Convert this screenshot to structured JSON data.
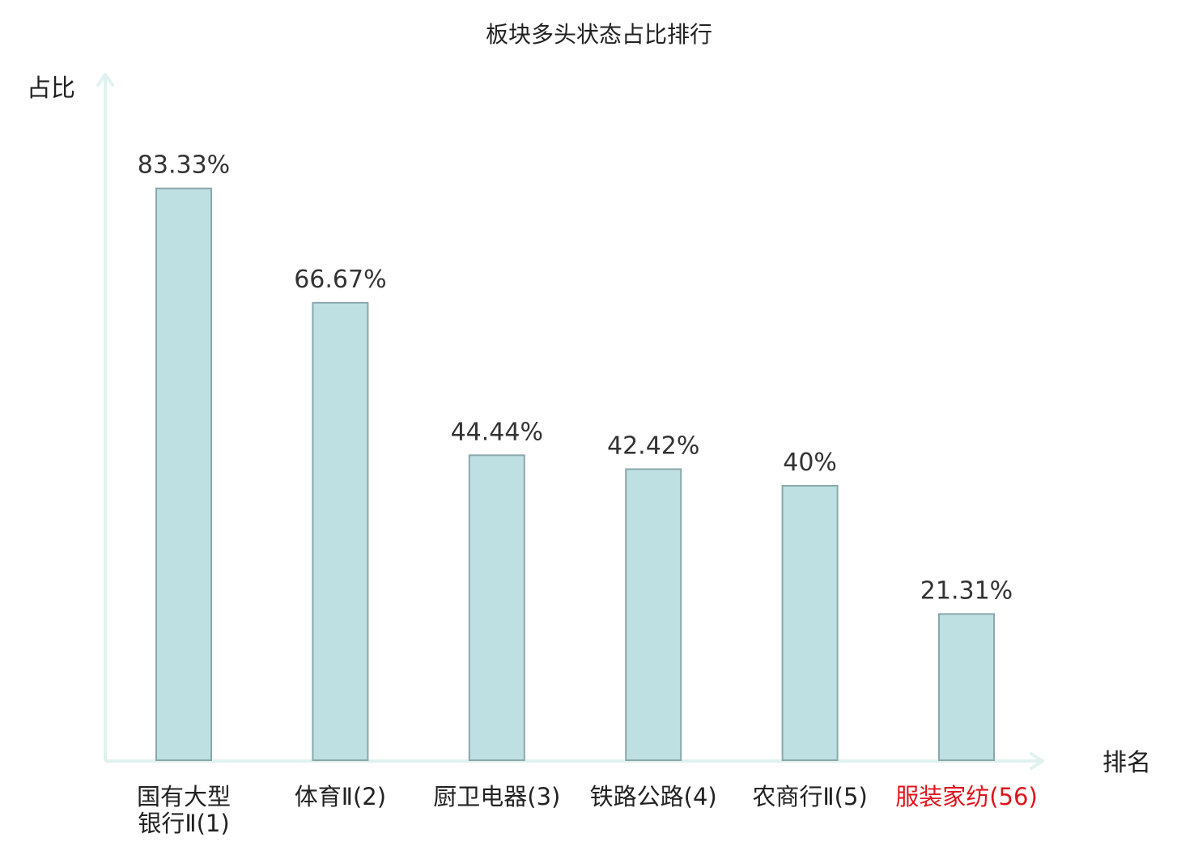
{
  "chart_data": {
    "type": "bar",
    "title": "板块多头状态占比排行",
    "xlabel": "排名",
    "ylabel": "占比",
    "categories": [
      [
        "国有大型",
        "银行Ⅱ(1)"
      ],
      [
        "体育Ⅱ(2)"
      ],
      [
        "厨卫电器(3)"
      ],
      [
        "铁路公路(4)"
      ],
      [
        "农商行Ⅱ(5)"
      ],
      [
        "服装家纺(56)"
      ]
    ],
    "values": [
      83.33,
      66.67,
      44.44,
      42.42,
      40,
      21.31
    ],
    "value_labels": [
      "83.33%",
      "66.67%",
      "44.44%",
      "42.42%",
      "40%",
      "21.31%"
    ],
    "highlight_index": 5,
    "ylim": [
      0,
      100
    ],
    "grid": false,
    "legend": "none",
    "colors": {
      "bar_fill": "#bfe0e3",
      "bar_stroke": "#8aa8aa",
      "axis": "#e0f2ef",
      "highlight_text": "#e0141c"
    }
  }
}
